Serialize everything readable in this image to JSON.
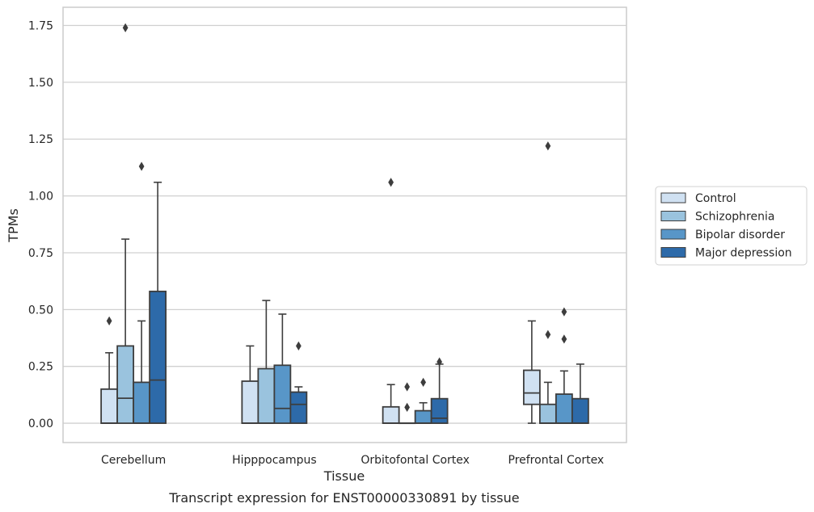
{
  "chart_data": {
    "type": "box",
    "title": "Transcript expression for ENST00000330891 by tissue",
    "xlabel": "Tissue",
    "ylabel": "TPMs",
    "ylim": [
      -0.085,
      1.83
    ],
    "yticks": [
      0.0,
      0.25,
      0.5,
      0.75,
      1.0,
      1.25,
      1.5,
      1.75
    ],
    "ytick_labels": [
      "0.00",
      "0.25",
      "0.50",
      "0.75",
      "1.00",
      "1.25",
      "1.50",
      "1.75"
    ],
    "grid": "horizontal",
    "legend_placement": "right",
    "categories": [
      "Cerebellum",
      "Hipppocampus",
      "Orbitofontal Cortex",
      "Prefrontal Cortex"
    ],
    "series": [
      {
        "name": "Control",
        "color": "#d0e1f2",
        "boxes": [
          {
            "whislo": 0.0,
            "q1": 0.0,
            "med": 0.0,
            "q3": 0.15,
            "whishi": 0.31,
            "fliers": [
              0.45
            ]
          },
          {
            "whislo": 0.0,
            "q1": 0.0,
            "med": 0.0,
            "q3": 0.185,
            "whishi": 0.34,
            "fliers": []
          },
          {
            "whislo": 0.0,
            "q1": 0.0,
            "med": 0.0,
            "q3": 0.072,
            "whishi": 0.17,
            "fliers": [
              1.06
            ]
          },
          {
            "whislo": 0.0,
            "q1": 0.083,
            "med": 0.133,
            "q3": 0.233,
            "whishi": 0.45,
            "fliers": []
          }
        ]
      },
      {
        "name": "Schizophrenia",
        "color": "#9ac3de",
        "boxes": [
          {
            "whislo": 0.0,
            "q1": 0.0,
            "med": 0.11,
            "q3": 0.34,
            "whishi": 0.81,
            "fliers": [
              1.74
            ]
          },
          {
            "whislo": 0.0,
            "q1": 0.0,
            "med": 0.0,
            "q3": 0.24,
            "whishi": 0.54,
            "fliers": []
          },
          {
            "whislo": 0.0,
            "q1": 0.0,
            "med": 0.0,
            "q3": 0.0,
            "whishi": 0.0,
            "fliers": [
              0.16,
              0.07
            ]
          },
          {
            "whislo": 0.0,
            "q1": 0.0,
            "med": 0.0,
            "q3": 0.083,
            "whishi": 0.18,
            "fliers": [
              1.22,
              0.39
            ]
          }
        ]
      },
      {
        "name": "Bipolar disorder",
        "color": "#5896c8",
        "boxes": [
          {
            "whislo": 0.0,
            "q1": 0.0,
            "med": 0.0,
            "q3": 0.18,
            "whishi": 0.45,
            "fliers": [
              1.13
            ]
          },
          {
            "whislo": 0.0,
            "q1": 0.0,
            "med": 0.065,
            "q3": 0.255,
            "whishi": 0.48,
            "fliers": []
          },
          {
            "whislo": 0.0,
            "q1": 0.0,
            "med": 0.0,
            "q3": 0.055,
            "whishi": 0.09,
            "fliers": [
              0.18
            ]
          },
          {
            "whislo": 0.0,
            "q1": 0.0,
            "med": 0.0,
            "q3": 0.128,
            "whishi": 0.23,
            "fliers": [
              0.49,
              0.37
            ]
          }
        ]
      },
      {
        "name": "Major depression",
        "color": "#2d6aa9",
        "boxes": [
          {
            "whislo": 0.0,
            "q1": 0.0,
            "med": 0.19,
            "q3": 0.58,
            "whishi": 1.06,
            "fliers": []
          },
          {
            "whislo": 0.0,
            "q1": 0.0,
            "med": 0.083,
            "q3": 0.137,
            "whishi": 0.16,
            "fliers": [
              0.34
            ]
          },
          {
            "whislo": 0.0,
            "q1": 0.0,
            "med": 0.022,
            "q3": 0.108,
            "whishi": 0.26,
            "fliers": [
              0.27
            ]
          },
          {
            "whislo": 0.0,
            "q1": 0.0,
            "med": 0.0,
            "q3": 0.108,
            "whishi": 0.26,
            "fliers": []
          }
        ]
      }
    ]
  }
}
